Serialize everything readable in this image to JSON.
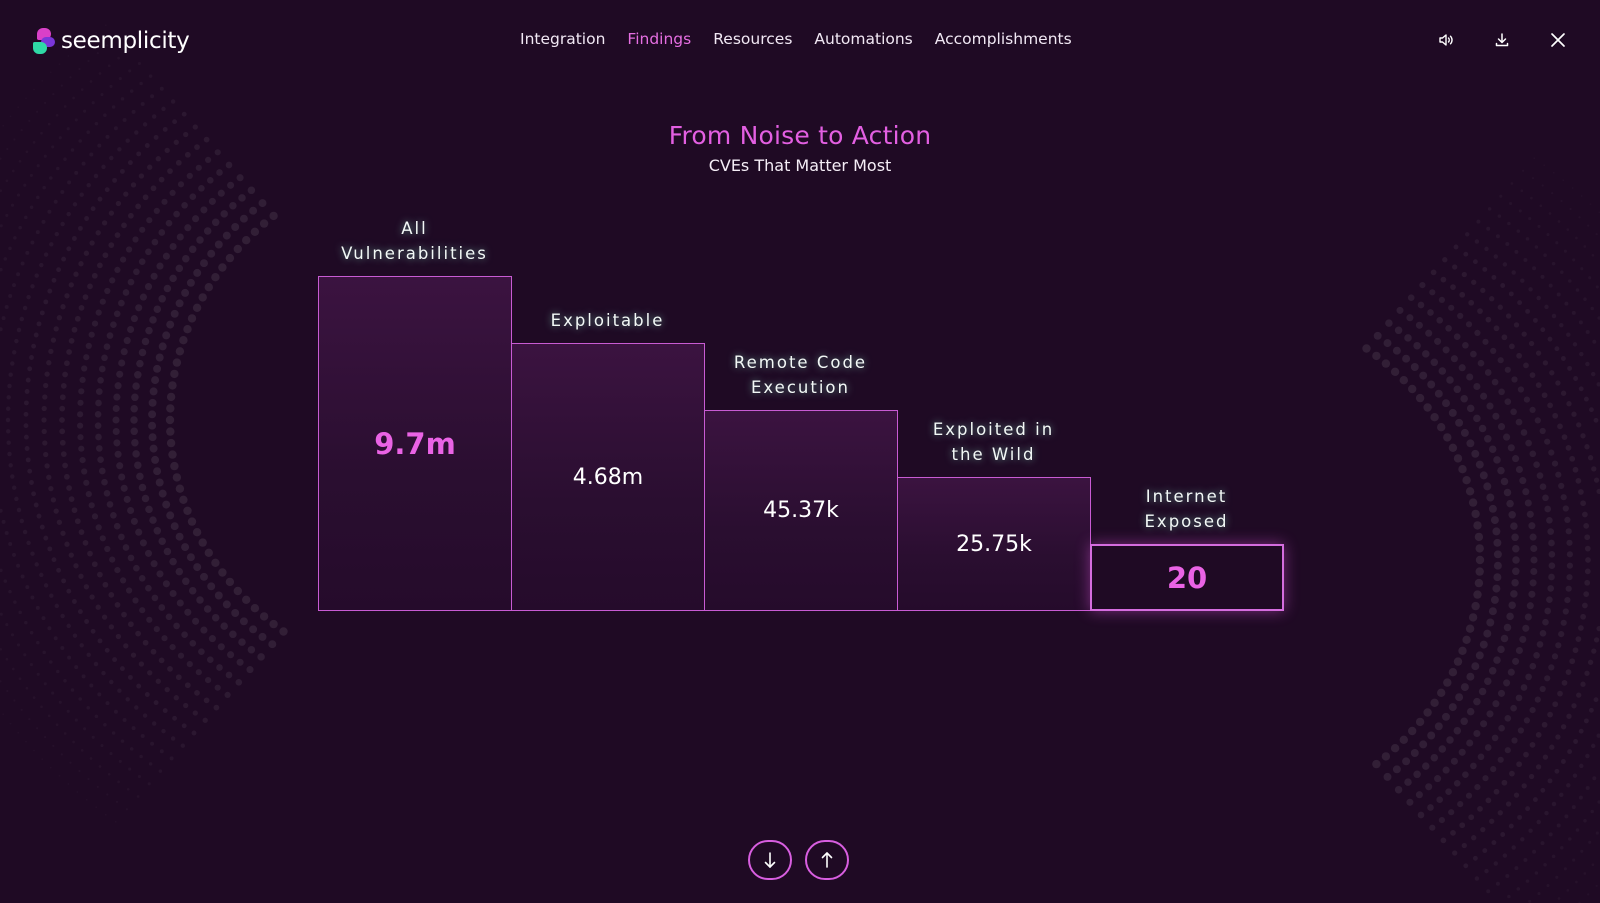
{
  "brand": {
    "name": "seemplicity"
  },
  "nav": {
    "items": [
      "Integration",
      "Findings",
      "Resources",
      "Automations",
      "Accomplishments"
    ],
    "active": "Findings"
  },
  "toolbar": {
    "icons": [
      "speaker-icon",
      "download-icon",
      "close-icon"
    ]
  },
  "slide": {
    "title": "From Noise to Action",
    "subtitle": "CVEs That Matter Most"
  },
  "chart_data": {
    "type": "bar",
    "categories": [
      "All\nVulnerabilities",
      "Exploitable",
      "Remote Code\nExecution",
      "Exploited in\nthe Wild",
      "Internet\nExposed"
    ],
    "value_labels": [
      "9.7m",
      "4.68m",
      "45.37k",
      "25.75k",
      "20"
    ],
    "values": [
      9700000,
      4680000,
      45370,
      25750,
      20
    ],
    "highlighted": [
      0,
      4
    ]
  },
  "pager": {
    "icons": [
      "arrow-down-icon",
      "arrow-up-icon"
    ]
  },
  "colors": {
    "background": "#1f0a24",
    "accent": "#e35fe2",
    "bar_border": "#c85bd3"
  }
}
